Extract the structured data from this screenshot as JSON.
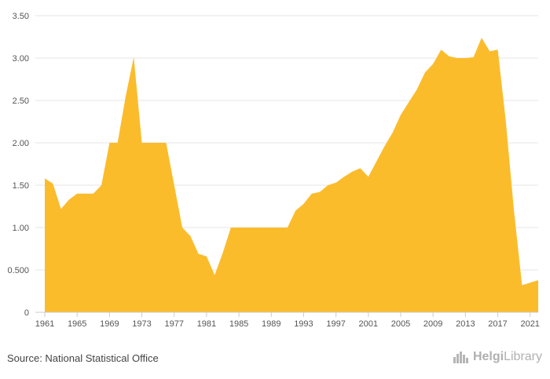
{
  "chart_data": {
    "type": "area",
    "title": "",
    "xlabel": "",
    "ylabel": "",
    "ylim": [
      0,
      3.5
    ],
    "xlim": [
      1961,
      2022
    ],
    "grid": true,
    "color": "#fbbc2c",
    "y_ticks": [
      "0",
      "0.500",
      "1.00",
      "1.50",
      "2.00",
      "2.50",
      "3.00",
      "3.50"
    ],
    "x_ticks": [
      "1961",
      "1965",
      "1969",
      "1973",
      "1977",
      "1981",
      "1985",
      "1989",
      "1993",
      "1997",
      "2001",
      "2005",
      "2009",
      "2013",
      "2017",
      "2021"
    ],
    "x": [
      1961,
      1962,
      1963,
      1964,
      1965,
      1966,
      1967,
      1968,
      1969,
      1970,
      1971,
      1972,
      1973,
      1974,
      1975,
      1976,
      1977,
      1978,
      1979,
      1980,
      1981,
      1982,
      1983,
      1984,
      1985,
      1986,
      1987,
      1988,
      1989,
      1990,
      1991,
      1992,
      1993,
      1994,
      1995,
      1996,
      1997,
      1998,
      1999,
      2000,
      2001,
      2002,
      2003,
      2004,
      2005,
      2006,
      2007,
      2008,
      2009,
      2010,
      2011,
      2012,
      2013,
      2014,
      2015,
      2016,
      2017,
      2018,
      2019,
      2020,
      2021,
      2022
    ],
    "values": [
      1.58,
      1.52,
      1.22,
      1.33,
      1.4,
      1.4,
      1.4,
      1.5,
      2.0,
      2.0,
      2.55,
      3.01,
      2.0,
      2.0,
      2.0,
      2.0,
      1.5,
      1.0,
      0.9,
      0.69,
      0.66,
      0.44,
      0.7,
      1.0,
      1.0,
      1.0,
      1.0,
      1.0,
      1.0,
      1.0,
      1.0,
      1.2,
      1.28,
      1.4,
      1.42,
      1.5,
      1.53,
      1.6,
      1.66,
      1.7,
      1.6,
      1.78,
      1.96,
      2.12,
      2.33,
      2.48,
      2.63,
      2.83,
      2.93,
      3.1,
      3.02,
      3.0,
      3.0,
      3.01,
      3.24,
      3.08,
      3.1,
      2.25,
      1.2,
      0.32,
      0.35,
      0.38
    ]
  },
  "footer": {
    "source": "Source: National Statistical Office",
    "logo_text_bold": "Helgi",
    "logo_text": "Library"
  }
}
